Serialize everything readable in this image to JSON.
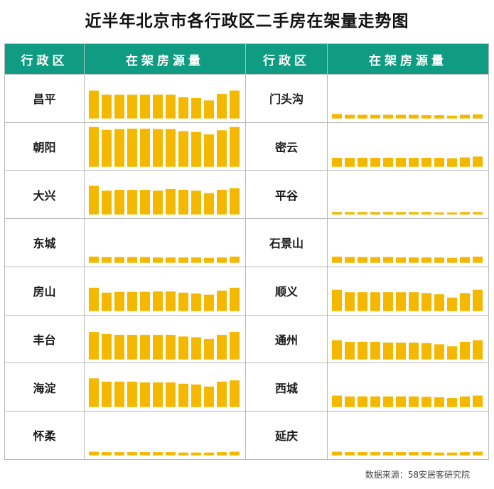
{
  "title": "近半年北京市各行政区二手房在架量走势图",
  "header": {
    "district": "行政区",
    "listings": "在架房源量"
  },
  "source": "数据来源：58安居客研究院",
  "bar_color": "#f5b800",
  "header_color": "#109c82",
  "chart_data": {
    "type": "bar",
    "ylim": [
      0,
      100
    ],
    "groups": [
      {
        "name": "昌平",
        "values": [
          68,
          58,
          58,
          58,
          58,
          58,
          58,
          52,
          50,
          44,
          60,
          68
        ]
      },
      {
        "name": "门头沟",
        "values": [
          11,
          9,
          9,
          9,
          9,
          9,
          9,
          8,
          8,
          7,
          9,
          10
        ]
      },
      {
        "name": "朝阳",
        "values": [
          97,
          90,
          92,
          93,
          93,
          92,
          92,
          87,
          85,
          79,
          89,
          97
        ]
      },
      {
        "name": "密云",
        "values": [
          22,
          22,
          22,
          22,
          22,
          22,
          22,
          22,
          22,
          21,
          23,
          25
        ]
      },
      {
        "name": "大兴",
        "values": [
          70,
          58,
          60,
          60,
          60,
          58,
          62,
          60,
          58,
          52,
          60,
          64
        ]
      },
      {
        "name": "平谷",
        "values": [
          6,
          6,
          6,
          6,
          6,
          6,
          6,
          6,
          5,
          5,
          6,
          6
        ]
      },
      {
        "name": "东城",
        "values": [
          15,
          14,
          14,
          14,
          14,
          13,
          13,
          13,
          13,
          12,
          13,
          15
        ]
      },
      {
        "name": "石景山",
        "values": [
          15,
          14,
          14,
          14,
          14,
          13,
          13,
          13,
          13,
          12,
          14,
          15
        ]
      },
      {
        "name": "房山",
        "values": [
          57,
          45,
          47,
          47,
          47,
          48,
          48,
          45,
          43,
          40,
          50,
          57
        ]
      },
      {
        "name": "顺义",
        "values": [
          52,
          46,
          46,
          46,
          46,
          46,
          46,
          44,
          41,
          33,
          44,
          52
        ]
      },
      {
        "name": "丰台",
        "values": [
          67,
          62,
          60,
          60,
          60,
          60,
          60,
          56,
          54,
          50,
          60,
          67
        ]
      },
      {
        "name": "通州",
        "values": [
          47,
          43,
          43,
          43,
          41,
          41,
          41,
          40,
          37,
          32,
          43,
          47
        ]
      },
      {
        "name": "海淀",
        "values": [
          70,
          62,
          62,
          62,
          60,
          60,
          60,
          57,
          55,
          50,
          62,
          65
        ]
      },
      {
        "name": "西城",
        "values": [
          28,
          26,
          26,
          26,
          26,
          26,
          26,
          25,
          24,
          22,
          26,
          28
        ]
      },
      {
        "name": "怀柔",
        "values": [
          9,
          8,
          8,
          8,
          8,
          8,
          8,
          7,
          7,
          7,
          8,
          9
        ]
      },
      {
        "name": "延庆",
        "values": [
          9,
          8,
          8,
          8,
          8,
          8,
          8,
          8,
          7,
          7,
          8,
          9
        ]
      }
    ]
  }
}
